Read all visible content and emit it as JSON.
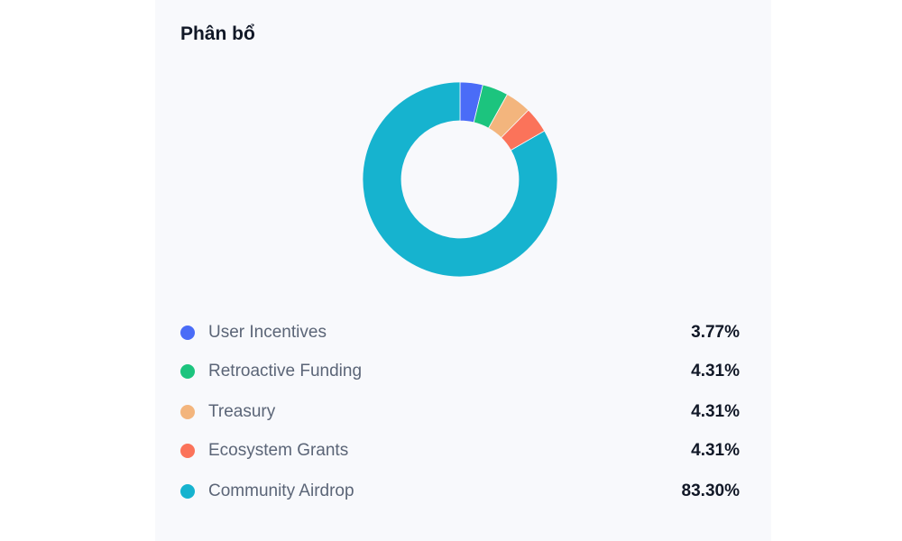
{
  "chart_data": {
    "type": "pie",
    "variant": "donut",
    "title": "Phân bổ",
    "legend_position": "bottom",
    "slices": [
      {
        "label": "User Incentives",
        "value": 3.77,
        "display": "3.77%",
        "color": "#4a6cf7"
      },
      {
        "label": "Retroactive Funding",
        "value": 4.31,
        "display": "4.31%",
        "color": "#1cc47e"
      },
      {
        "label": "Treasury",
        "value": 4.31,
        "display": "4.31%",
        "color": "#f3b57d"
      },
      {
        "label": "Ecosystem Grants",
        "value": 4.31,
        "display": "4.31%",
        "color": "#fb735a"
      },
      {
        "label": "Community Airdrop",
        "value": 83.3,
        "display": "83.30%",
        "color": "#16b3cf"
      }
    ]
  }
}
